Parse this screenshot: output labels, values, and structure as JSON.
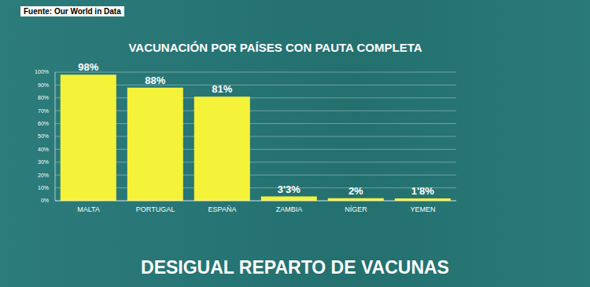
{
  "chart_data": {
    "type": "bar",
    "title": "VACUNACIÓN POR PAÍSES CON PAUTA COMPLETA",
    "source": "Fuente: Our World in Data",
    "caption": "DESIGUAL REPARTO DE VACUNAS",
    "categories": [
      "MALTA",
      "PORTUGAL",
      "ESPAÑA",
      "ZAMBIA",
      "NÍGER",
      "YEMEN"
    ],
    "values": [
      98,
      88,
      81,
      3.3,
      2,
      1.8
    ],
    "value_labels": [
      "98%",
      "88%",
      "81%",
      "3'3%",
      "2%",
      "1'8%"
    ],
    "color": "#f5f23a",
    "ylim": [
      0,
      100
    ],
    "yticks": [
      {
        "value": 0,
        "label": "0%"
      },
      {
        "value": 10,
        "label": "10%"
      },
      {
        "value": 20,
        "label": "20%"
      },
      {
        "value": 30,
        "label": "30%"
      },
      {
        "value": 40,
        "label": "40%"
      },
      {
        "value": 50,
        "label": "50%"
      },
      {
        "value": 60,
        "label": "60%"
      },
      {
        "value": 70,
        "label": "70%"
      },
      {
        "value": 80,
        "label": "80%"
      },
      {
        "value": 90,
        "label": "90%"
      },
      {
        "value": 100,
        "label": "100%"
      }
    ],
    "grid": true,
    "data_labels": true
  }
}
